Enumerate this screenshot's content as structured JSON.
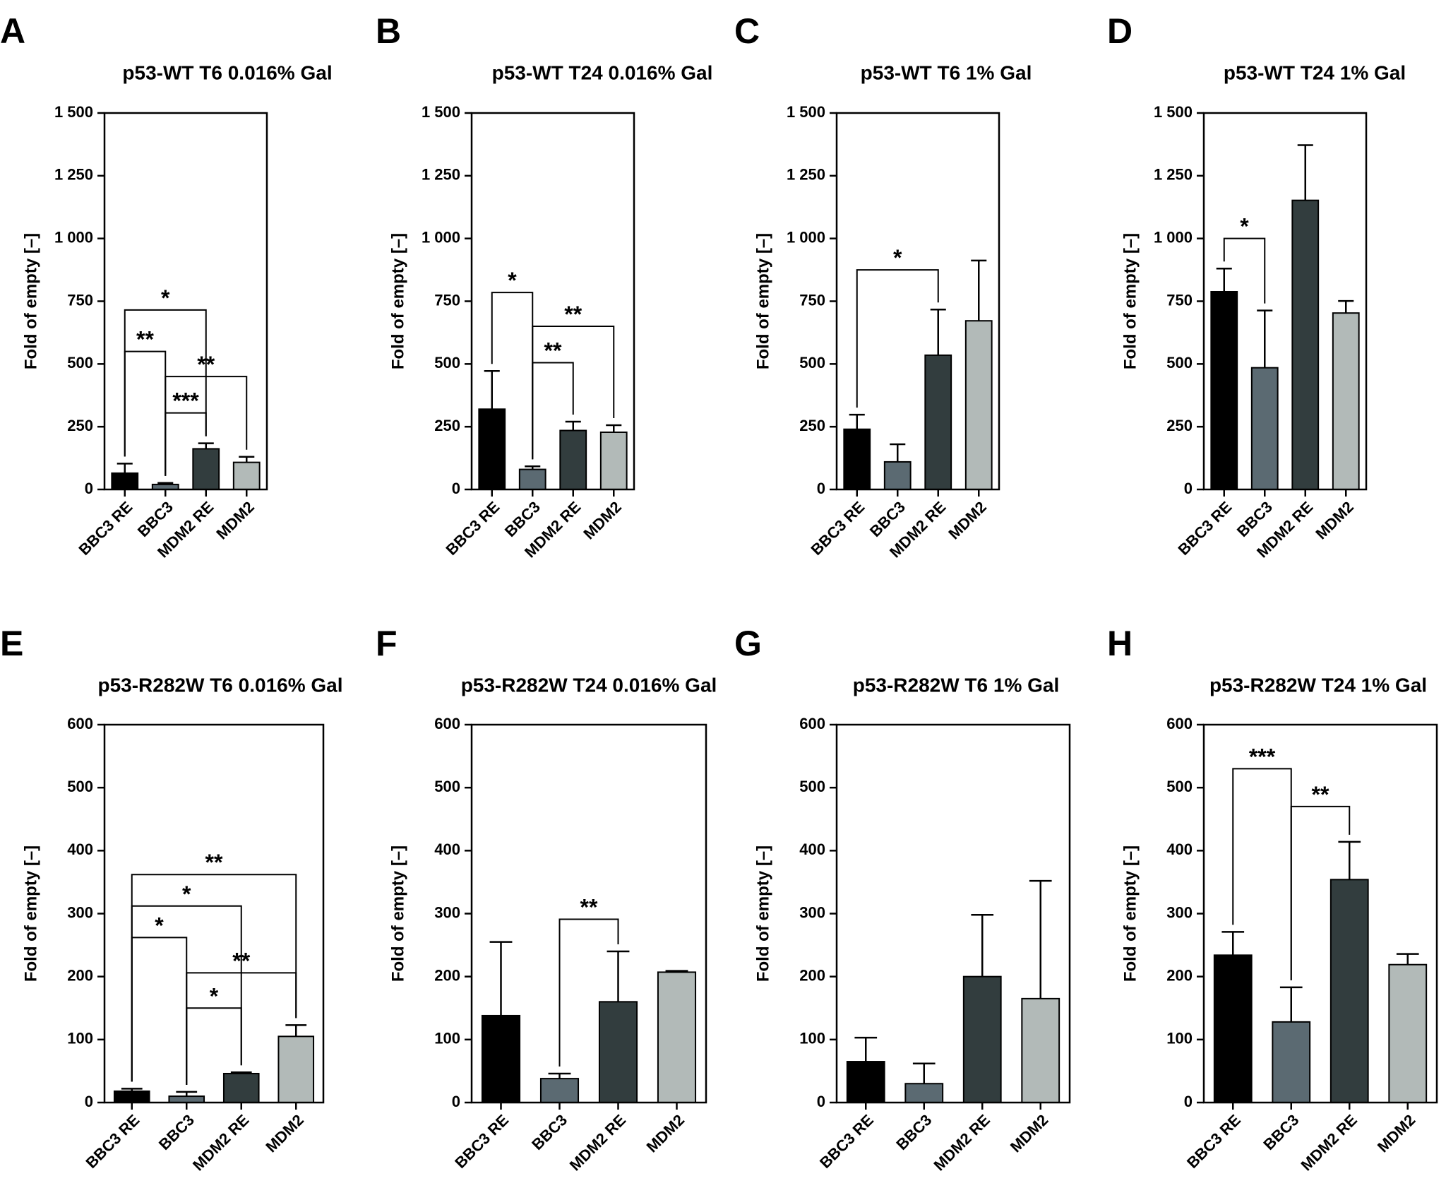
{
  "colors": {
    "BBC3 RE": "#000000",
    "BBC3": "#5b6a72",
    "MDM2 RE": "#323d3e",
    "MDM2": "#b2bab8"
  },
  "chart_data": [
    {
      "letter": "A",
      "title": "p53-WT T6 0.016% Gal",
      "type": "bar",
      "ylabel": "Fold of empty [–]",
      "ylim": [
        0,
        1500
      ],
      "yticks": [
        0,
        250,
        500,
        750,
        1000,
        1250,
        1500
      ],
      "ytick_labels": [
        "0",
        "250",
        "500",
        "750",
        "1 000",
        "1 250",
        "1 500"
      ],
      "categories": [
        "BBC3 RE",
        "BBC3",
        "MDM2 RE",
        "MDM2"
      ],
      "values": [
        65,
        20,
        162,
        108
      ],
      "errors": [
        38,
        6,
        22,
        22
      ],
      "significance": [
        {
          "from": 0,
          "to": 2,
          "y": 715,
          "label": "*"
        },
        {
          "from": 0,
          "to": 1,
          "y": 550,
          "label": "**"
        },
        {
          "from": 1,
          "to": 3,
          "y": 450,
          "label": "**"
        },
        {
          "from": 1,
          "to": 2,
          "y": 305,
          "label": "***"
        }
      ]
    },
    {
      "letter": "B",
      "title": "p53-WT T24 0.016% Gal",
      "type": "bar",
      "ylabel": "Fold of empty [–]",
      "ylim": [
        0,
        1500
      ],
      "yticks": [
        0,
        250,
        500,
        750,
        1000,
        1250,
        1500
      ],
      "ytick_labels": [
        "0",
        "250",
        "500",
        "750",
        "1 000",
        "1 250",
        "1 500"
      ],
      "categories": [
        "BBC3 RE",
        "BBC3",
        "MDM2 RE",
        "MDM2"
      ],
      "values": [
        320,
        80,
        235,
        228
      ],
      "errors": [
        152,
        12,
        35,
        28
      ],
      "significance": [
        {
          "from": 0,
          "to": 1,
          "y": 785,
          "label": "*"
        },
        {
          "from": 1,
          "to": 3,
          "y": 650,
          "label": "**"
        },
        {
          "from": 1,
          "to": 2,
          "y": 505,
          "label": "**"
        }
      ]
    },
    {
      "letter": "C",
      "title": "p53-WT T6 1% Gal",
      "type": "bar",
      "ylabel": "Fold of empty [–]",
      "ylim": [
        0,
        1500
      ],
      "yticks": [
        0,
        250,
        500,
        750,
        1000,
        1250,
        1500
      ],
      "ytick_labels": [
        "0",
        "250",
        "500",
        "750",
        "1 000",
        "1 250",
        "1 500"
      ],
      "categories": [
        "BBC3 RE",
        "BBC3",
        "MDM2 RE",
        "MDM2"
      ],
      "values": [
        240,
        110,
        535,
        672
      ],
      "errors": [
        58,
        70,
        182,
        240
      ],
      "significance": [
        {
          "from": 0,
          "to": 2,
          "y": 875,
          "label": "*"
        }
      ]
    },
    {
      "letter": "D",
      "title": "p53-WT T24 1% Gal",
      "type": "bar",
      "ylabel": "Fold of empty [–]",
      "ylim": [
        0,
        1500
      ],
      "yticks": [
        0,
        250,
        500,
        750,
        1000,
        1250,
        1500
      ],
      "ytick_labels": [
        "0",
        "250",
        "500",
        "750",
        "1 000",
        "1 250",
        "1 500"
      ],
      "categories": [
        "BBC3 RE",
        "BBC3",
        "MDM2 RE",
        "MDM2"
      ],
      "values": [
        788,
        485,
        1152,
        703
      ],
      "errors": [
        92,
        228,
        220,
        48
      ],
      "significance": [
        {
          "from": 0,
          "to": 1,
          "y": 1000,
          "label": "*"
        }
      ]
    },
    {
      "letter": "E",
      "title": "p53-R282W T6 0.016% Gal",
      "type": "bar",
      "ylabel": "Fold of empty [–]",
      "ylim": [
        0,
        600
      ],
      "yticks": [
        0,
        100,
        200,
        300,
        400,
        500,
        600
      ],
      "ytick_labels": [
        "0",
        "100",
        "200",
        "300",
        "400",
        "500",
        "600"
      ],
      "categories": [
        "BBC3 RE",
        "BBC3",
        "MDM2 RE",
        "MDM2"
      ],
      "values": [
        18,
        10,
        46,
        105
      ],
      "errors": [
        4,
        7,
        2,
        18
      ],
      "significance": [
        {
          "from": 0,
          "to": 3,
          "y": 362,
          "label": "**"
        },
        {
          "from": 0,
          "to": 2,
          "y": 312,
          "label": "*"
        },
        {
          "from": 0,
          "to": 1,
          "y": 262,
          "label": "*"
        },
        {
          "from": 1,
          "to": 3,
          "y": 206,
          "label": "**"
        },
        {
          "from": 1,
          "to": 2,
          "y": 150,
          "label": "*"
        }
      ]
    },
    {
      "letter": "F",
      "title": "p53-R282W T24 0.016% Gal",
      "type": "bar",
      "ylabel": "Fold of empty [–]",
      "ylim": [
        0,
        600
      ],
      "yticks": [
        0,
        100,
        200,
        300,
        400,
        500,
        600
      ],
      "ytick_labels": [
        "0",
        "100",
        "200",
        "300",
        "400",
        "500",
        "600"
      ],
      "categories": [
        "BBC3 RE",
        "BBC3",
        "MDM2 RE",
        "MDM2"
      ],
      "values": [
        138,
        38,
        160,
        207
      ],
      "errors": [
        117,
        8,
        80,
        2
      ],
      "significance": [
        {
          "from": 1,
          "to": 2,
          "y": 291,
          "label": "**"
        }
      ]
    },
    {
      "letter": "G",
      "title": "p53-R282W T6 1% Gal",
      "type": "bar",
      "ylabel": "Fold of empty [–]",
      "ylim": [
        0,
        600
      ],
      "yticks": [
        0,
        100,
        200,
        300,
        400,
        500,
        600
      ],
      "ytick_labels": [
        "0",
        "100",
        "200",
        "300",
        "400",
        "500",
        "600"
      ],
      "categories": [
        "BBC3 RE",
        "BBC3",
        "MDM2 RE",
        "MDM2"
      ],
      "values": [
        65,
        30,
        200,
        165
      ],
      "errors": [
        38,
        32,
        98,
        187
      ],
      "significance": []
    },
    {
      "letter": "H",
      "title": "p53-R282W T24 1% Gal",
      "type": "bar",
      "ylabel": "Fold of empty [–]",
      "ylim": [
        0,
        600
      ],
      "yticks": [
        0,
        100,
        200,
        300,
        400,
        500,
        600
      ],
      "ytick_labels": [
        "0",
        "100",
        "200",
        "300",
        "400",
        "500",
        "600"
      ],
      "categories": [
        "BBC3 RE",
        "BBC3",
        "MDM2 RE",
        "MDM2"
      ],
      "values": [
        234,
        128,
        354,
        219
      ],
      "errors": [
        37,
        55,
        60,
        17
      ],
      "significance": [
        {
          "from": 0,
          "to": 1,
          "y": 530,
          "label": "***"
        },
        {
          "from": 1,
          "to": 2,
          "y": 470,
          "label": "**"
        }
      ]
    }
  ]
}
